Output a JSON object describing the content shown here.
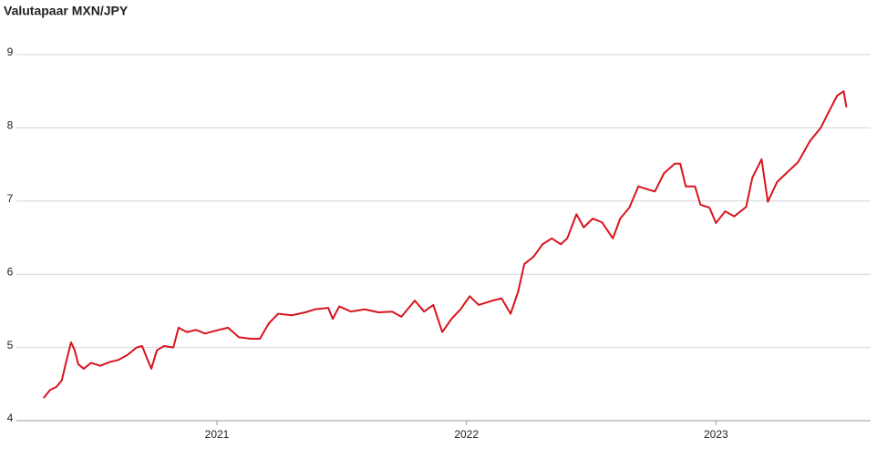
{
  "chart_data": {
    "type": "line",
    "title": "Valutapaar MXN/JPY",
    "color": "#d7141e",
    "grid": true,
    "x": [
      2020.305,
      2020.331,
      2020.356,
      2020.378,
      2020.393,
      2020.415,
      2020.43,
      2020.444,
      2020.466,
      2020.495,
      2020.532,
      2020.569,
      2020.605,
      2020.642,
      2020.678,
      2020.7,
      2020.722,
      2020.737,
      2020.759,
      2020.788,
      2020.825,
      2020.846,
      2020.879,
      2020.916,
      2020.952,
      2021.007,
      2021.044,
      2021.088,
      2021.135,
      2021.172,
      2021.208,
      2021.245,
      2021.3,
      2021.355,
      2021.391,
      2021.446,
      2021.464,
      2021.49,
      2021.537,
      2021.592,
      2021.647,
      2021.702,
      2021.739,
      2021.793,
      2021.83,
      2021.867,
      2021.903,
      2021.94,
      2021.976,
      2022.013,
      2022.049,
      2022.104,
      2022.141,
      2022.177,
      2022.207,
      2022.232,
      2022.269,
      2022.305,
      2022.342,
      2022.378,
      2022.404,
      2022.441,
      2022.47,
      2022.506,
      2022.543,
      2022.587,
      2022.616,
      2022.653,
      2022.689,
      2022.726,
      2022.755,
      2022.792,
      2022.835,
      2022.857,
      2022.879,
      2022.916,
      2022.938,
      2022.974,
      2023.0,
      2023.037,
      2023.073,
      2023.121,
      2023.146,
      2023.183,
      2023.208,
      2023.245,
      2023.282,
      2023.329,
      2023.377,
      2023.42,
      2023.457,
      2023.486,
      2023.512,
      2023.523
    ],
    "values": [
      4.31,
      4.42,
      4.46,
      4.55,
      4.77,
      5.07,
      4.96,
      4.77,
      4.71,
      4.79,
      4.75,
      4.8,
      4.83,
      4.9,
      5.0,
      5.02,
      4.83,
      4.71,
      4.96,
      5.02,
      5.0,
      5.27,
      5.21,
      5.24,
      5.19,
      5.24,
      5.27,
      5.14,
      5.12,
      5.12,
      5.33,
      5.46,
      5.44,
      5.48,
      5.52,
      5.54,
      5.39,
      5.56,
      5.49,
      5.52,
      5.48,
      5.49,
      5.42,
      5.64,
      5.49,
      5.58,
      5.21,
      5.39,
      5.52,
      5.7,
      5.58,
      5.64,
      5.67,
      5.46,
      5.76,
      6.14,
      6.24,
      6.41,
      6.49,
      6.41,
      6.49,
      6.82,
      6.64,
      6.76,
      6.71,
      6.49,
      6.76,
      6.91,
      7.2,
      7.16,
      7.13,
      7.38,
      7.51,
      7.51,
      7.2,
      7.2,
      6.95,
      6.91,
      6.7,
      6.86,
      6.79,
      6.92,
      7.32,
      7.57,
      6.99,
      7.26,
      7.38,
      7.53,
      7.82,
      8.0,
      8.25,
      8.44,
      8.5,
      8.28
    ],
    "xlim": [
      2020.196,
      2023.62
    ],
    "xticks": [
      2021,
      2022,
      2023
    ],
    "ylim": [
      4,
      9
    ],
    "yticks": [
      4,
      5,
      6,
      7,
      8,
      9
    ]
  }
}
